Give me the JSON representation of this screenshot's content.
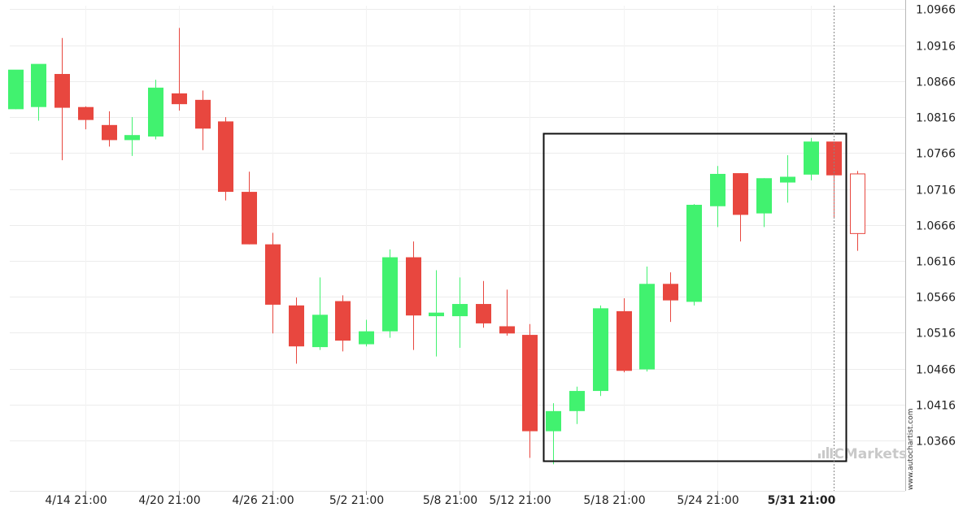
{
  "chart_data": {
    "type": "candlestick",
    "instrument_timeframe": "",
    "y_ticks": [
      "1.0966",
      "1.0916",
      "1.0866",
      "1.0816",
      "1.0766",
      "1.0716",
      "1.0666",
      "1.0616",
      "1.0566",
      "1.0516",
      "1.0466",
      "1.0416",
      "1.0366"
    ],
    "x_ticks": [
      "4/14 21:00",
      "4/20 21:00",
      "4/26 21:00",
      "5/2 21:00",
      "5/8 21:00",
      "5/12 21:00",
      "5/18 21:00",
      "5/24 21:00",
      "5/31 21:00"
    ],
    "highlight_x_tick": "5/31 21:00",
    "ylim": [
      1.0296,
      1.0971
    ],
    "colors": {
      "up": "#41f26f",
      "down": "#e8473f",
      "grid": "#ececec",
      "pattern_box": "#111111"
    },
    "candles": [
      {
        "o": 1.0827,
        "h": 1.088,
        "l": 1.0827,
        "c": 1.0882
      },
      {
        "o": 1.083,
        "h": 1.0889,
        "l": 1.0811,
        "c": 1.089
      },
      {
        "o": 1.0876,
        "h": 1.0926,
        "l": 1.0756,
        "c": 1.0829
      },
      {
        "o": 1.083,
        "h": 1.0831,
        "l": 1.0799,
        "c": 1.0812
      },
      {
        "o": 1.0805,
        "h": 1.0824,
        "l": 1.0775,
        "c": 1.0784
      },
      {
        "o": 1.0784,
        "h": 1.0816,
        "l": 1.0762,
        "c": 1.0791
      },
      {
        "o": 1.0789,
        "h": 1.0868,
        "l": 1.0785,
        "c": 1.0857
      },
      {
        "o": 1.0849,
        "h": 1.094,
        "l": 1.0825,
        "c": 1.0834
      },
      {
        "o": 1.084,
        "h": 1.0853,
        "l": 1.077,
        "c": 1.08
      },
      {
        "o": 1.081,
        "h": 1.0816,
        "l": 1.07,
        "c": 1.0712
      },
      {
        "o": 1.0712,
        "h": 1.074,
        "l": 1.0639,
        "c": 1.0639
      },
      {
        "o": 1.0639,
        "h": 1.0655,
        "l": 1.0515,
        "c": 1.0555
      },
      {
        "o": 1.0554,
        "h": 1.0565,
        "l": 1.0473,
        "c": 1.0497
      },
      {
        "o": 1.0496,
        "h": 1.0593,
        "l": 1.0492,
        "c": 1.0541
      },
      {
        "o": 1.056,
        "h": 1.0568,
        "l": 1.049,
        "c": 1.0505
      },
      {
        "o": 1.05,
        "h": 1.0534,
        "l": 1.0497,
        "c": 1.0518
      },
      {
        "o": 1.0518,
        "h": 1.0632,
        "l": 1.0509,
        "c": 1.0621
      },
      {
        "o": 1.0621,
        "h": 1.0643,
        "l": 1.0492,
        "c": 1.054
      },
      {
        "o": 1.0539,
        "h": 1.0603,
        "l": 1.0483,
        "c": 1.0544
      },
      {
        "o": 1.0539,
        "h": 1.0593,
        "l": 1.0495,
        "c": 1.0556
      },
      {
        "o": 1.0556,
        "h": 1.0588,
        "l": 1.0523,
        "c": 1.0529
      },
      {
        "o": 1.0525,
        "h": 1.0576,
        "l": 1.0512,
        "c": 1.0515
      },
      {
        "o": 1.0513,
        "h": 1.0528,
        "l": 1.0342,
        "c": 1.0379
      },
      {
        "o": 1.0379,
        "h": 1.0418,
        "l": 1.0333,
        "c": 1.0407
      },
      {
        "o": 1.0407,
        "h": 1.0441,
        "l": 1.0389,
        "c": 1.0435
      },
      {
        "o": 1.0435,
        "h": 1.0554,
        "l": 1.0428,
        "c": 1.055
      },
      {
        "o": 1.0546,
        "h": 1.0564,
        "l": 1.0461,
        "c": 1.0463
      },
      {
        "o": 1.0465,
        "h": 1.0608,
        "l": 1.0462,
        "c": 1.0584
      },
      {
        "o": 1.0584,
        "h": 1.06,
        "l": 1.0531,
        "c": 1.0561
      },
      {
        "o": 1.0559,
        "h": 1.0695,
        "l": 1.0554,
        "c": 1.0694
      },
      {
        "o": 1.0692,
        "h": 1.0748,
        "l": 1.0663,
        "c": 1.0737
      },
      {
        "o": 1.0738,
        "h": 1.0738,
        "l": 1.0643,
        "c": 1.068
      },
      {
        "o": 1.0682,
        "h": 1.0731,
        "l": 1.0663,
        "c": 1.0731
      },
      {
        "o": 1.0725,
        "h": 1.0763,
        "l": 1.0697,
        "c": 1.0733
      },
      {
        "o": 1.0736,
        "h": 1.0787,
        "l": 1.0728,
        "c": 1.0782
      },
      {
        "o": 1.0782,
        "h": 1.0782,
        "l": 1.0676,
        "c": 1.0735
      },
      {
        "o": 1.0737,
        "h": 1.0741,
        "l": 1.063,
        "c": 1.0654,
        "hollow": true
      }
    ],
    "pattern_box": {
      "start_index": 23,
      "end_index": 35,
      "top": 1.0793,
      "bottom": 1.0338
    },
    "current_marker_index": 35
  },
  "watermark": {
    "brand_text": "ICMarkets",
    "source_text": "www.autochartist.com"
  }
}
